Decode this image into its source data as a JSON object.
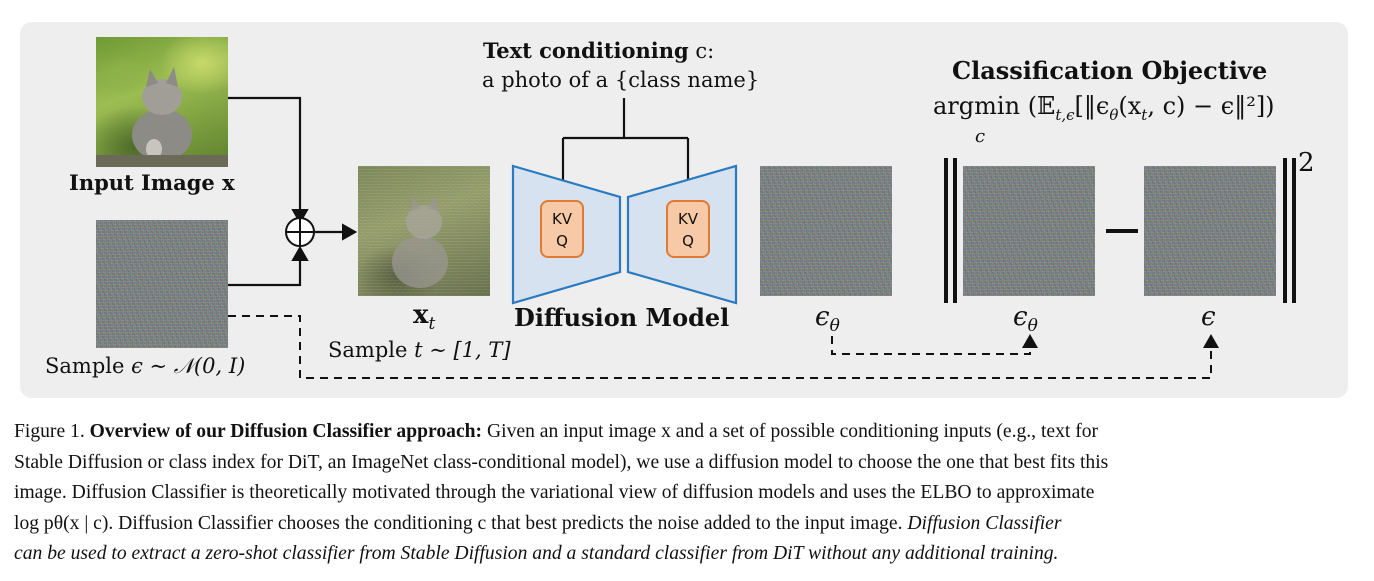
{
  "diagram": {
    "input_image_label": "Input Image",
    "input_image_symbol": "x",
    "noise_sample_prefix": "Sample",
    "noise_sample_formula": "ϵ ∼ 𝒩(0, I)",
    "plus_symbol": "⊕",
    "noised_image_symbol": "x",
    "noised_image_subscript": "t",
    "timestep_sample_prefix": "Sample",
    "timestep_sample_formula": "t ∼ [1, T]",
    "text_conditioning_title": "Text conditioning",
    "text_conditioning_symbol": "c:",
    "text_conditioning_prompt": "a photo of a {class name}",
    "attention_block_left": {
      "line1": "KV",
      "line2": "Q"
    },
    "attention_block_right": {
      "line1": "KV",
      "line2": "Q"
    },
    "model_label": "Diffusion Model",
    "predicted_noise_symbol": "ϵ",
    "predicted_noise_subscript": "θ",
    "objective_title": "Classification Objective",
    "objective_argmin": "argmin",
    "objective_argmin_var": "c",
    "objective_expression": "(𝔼",
    "objective_expression_sub": "t,ϵ",
    "objective_expression_rest": "[‖ϵ",
    "objective_expression_theta": "θ",
    "objective_expression_tail": "(x",
    "objective_expression_xt": "t",
    "objective_expression_end": ", c) − ϵ‖²])",
    "norm_exponent": "2",
    "norm_minus": "−",
    "norm_left_symbol": "ϵ",
    "norm_left_subscript": "θ",
    "norm_right_symbol": "ϵ",
    "colors": {
      "panel": "#eeeeee",
      "model_fill": "#d6e2f0",
      "model_stroke": "#2a7ac0",
      "attention_fill": "#f7c9a6",
      "attention_stroke": "#e07a35"
    }
  },
  "caption": {
    "figure_number": "Figure 1.",
    "bold_title": "Overview of our Diffusion Classifier approach:",
    "line1_rest": "Given an input image x and a set of possible conditioning inputs (e.g., text for",
    "line2": "Stable Diffusion or class index for DiT, an ImageNet class-conditional model), we use a diffusion model to choose the one that best fits this",
    "line3": "image. Diffusion Classifier is theoretically motivated through the variational view of diffusion models and uses the ELBO to approximate",
    "line4": "log pθ(x | c). Diffusion Classifier chooses the conditioning c that best predicts the noise added to the input image.",
    "line4_italic": "Diffusion Classifier",
    "line5_italic": "can be used to extract a zero-shot classifier from Stable Diffusion and a standard classifier from DiT without any additional training."
  }
}
